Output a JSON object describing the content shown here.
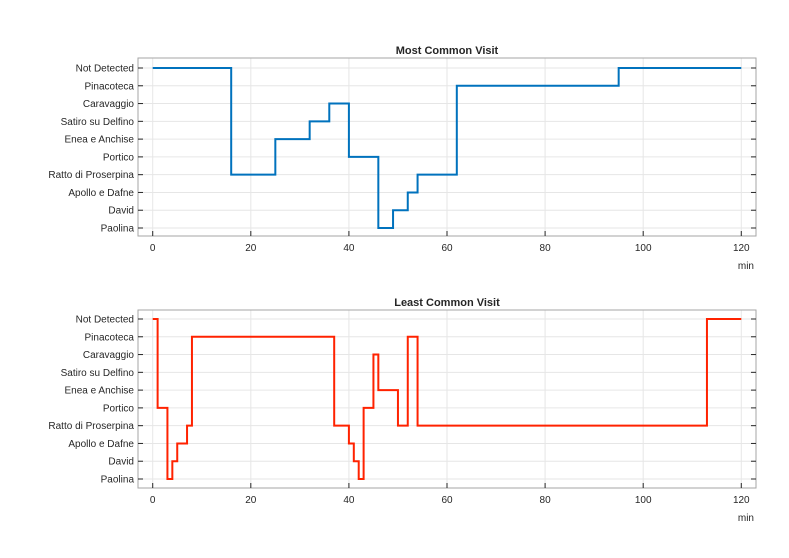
{
  "chart_data": [
    {
      "type": "line",
      "title": "Most Common Visit",
      "xlabel": "min",
      "ylabel": "",
      "xlim": [
        -3,
        123
      ],
      "xticks": [
        0,
        20,
        40,
        60,
        80,
        100,
        120
      ],
      "categories": [
        "Paolina",
        "David",
        "Apollo e Dafne",
        "Ratto di Proserpina",
        "Portico",
        "Enea e Anchise",
        "Satiro su Delfino",
        "Caravaggio",
        "Pinacoteca",
        "Not Detected"
      ],
      "grid": true,
      "step": true,
      "color": "#0072BD",
      "x": [
        0,
        16,
        25,
        32,
        36,
        40,
        46,
        49,
        52,
        54,
        62,
        95,
        120
      ],
      "y": [
        "Not Detected",
        "Ratto di Proserpina",
        "Enea e Anchise",
        "Satiro su Delfino",
        "Caravaggio",
        "Portico",
        "Paolina",
        "David",
        "Apollo e Dafne",
        "Ratto di Proserpina",
        "Pinacoteca",
        "Not Detected",
        "Not Detected"
      ]
    },
    {
      "type": "line",
      "title": "Least Common Visit",
      "xlabel": "min",
      "ylabel": "",
      "xlim": [
        -3,
        123
      ],
      "xticks": [
        0,
        20,
        40,
        60,
        80,
        100,
        120
      ],
      "categories": [
        "Paolina",
        "David",
        "Apollo e Dafne",
        "Ratto di Proserpina",
        "Portico",
        "Enea e Anchise",
        "Satiro su Delfino",
        "Caravaggio",
        "Pinacoteca",
        "Not Detected"
      ],
      "grid": true,
      "step": true,
      "color": "#FF2200",
      "x": [
        0,
        1,
        3,
        4,
        5,
        7,
        8,
        37,
        40,
        41,
        42,
        43,
        45,
        46,
        50,
        52,
        54,
        113,
        114,
        120
      ],
      "y": [
        "Not Detected",
        "Portico",
        "Paolina",
        "David",
        "Apollo e Dafne",
        "Ratto di Proserpina",
        "Pinacoteca",
        "Ratto di Proserpina",
        "Apollo e Dafne",
        "David",
        "Paolina",
        "Portico",
        "Caravaggio",
        "Enea e Anchise",
        "Ratto di Proserpina",
        "Pinacoteca",
        "Ratto di Proserpina",
        "Not Detected",
        "Not Detected",
        "Not Detected"
      ]
    }
  ]
}
